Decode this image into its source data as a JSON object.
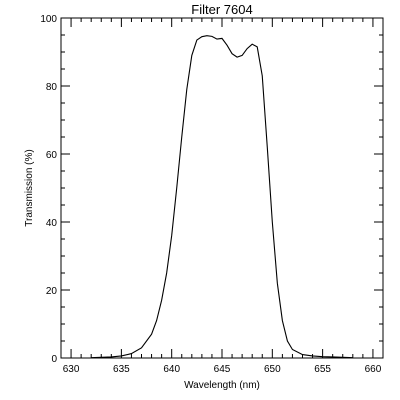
{
  "chart_data": {
    "type": "line",
    "title": "Filter 7604",
    "xlabel": "Wavelength (nm)",
    "ylabel": "Transmission (%)",
    "xlim": [
      629,
      661
    ],
    "ylim": [
      0,
      100
    ],
    "xticks": [
      630,
      635,
      640,
      645,
      650,
      655,
      660
    ],
    "xtick_labels": [
      "630",
      "635",
      "640",
      "645",
      "650",
      "655",
      "660"
    ],
    "yticks": [
      0,
      20,
      40,
      60,
      80,
      100
    ],
    "ytick_labels": [
      "0",
      "20",
      "40",
      "60",
      "80",
      "100"
    ],
    "x_minor_step": 1,
    "y_minor_step": 5,
    "grid": false,
    "series": [
      {
        "x": [
          632,
          634,
          635,
          636,
          637,
          638,
          638.5,
          639,
          639.5,
          640,
          640.5,
          641,
          641.5,
          642,
          642.5,
          643,
          643.5,
          644,
          644.5,
          645,
          645.5,
          646,
          646.5,
          647,
          647.5,
          648,
          648.5,
          649,
          649.5,
          650,
          650.5,
          651,
          651.5,
          652,
          653,
          654,
          655,
          656,
          658
        ],
        "y": [
          0.1,
          0.3,
          0.6,
          1.3,
          3,
          7,
          11,
          17,
          25,
          36,
          50,
          65,
          79,
          89,
          93.5,
          94.5,
          94.8,
          94.6,
          93.8,
          94,
          92,
          89.5,
          88.5,
          89,
          91,
          92.3,
          91.5,
          83,
          62,
          40,
          22,
          11,
          5,
          2.5,
          1,
          0.6,
          0.4,
          0.3,
          0.1
        ]
      }
    ]
  }
}
